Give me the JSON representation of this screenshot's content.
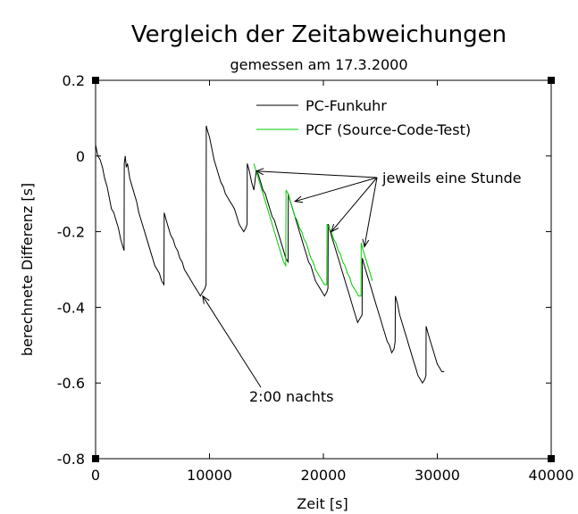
{
  "chart_data": {
    "type": "line",
    "title": "Vergleich der Zeitabweichungen",
    "subtitle": "gemessen am 17.3.2000",
    "xlabel": "Zeit [s]",
    "ylabel": "berechnete Differenz [s]",
    "xlim": [
      0,
      40000
    ],
    "ylim": [
      -0.8,
      0.2
    ],
    "x_ticks": [
      0,
      10000,
      20000,
      30000,
      40000
    ],
    "x_tick_labels": [
      "0",
      "10000",
      "20000",
      "30000",
      "40000"
    ],
    "y_ticks": [
      0.2,
      0,
      -0.2,
      -0.4,
      -0.6,
      -0.8
    ],
    "y_tick_labels": [
      "0.2",
      "0",
      "-0.2",
      "-0.4",
      "-0.6",
      "-0.8"
    ],
    "grid": false,
    "legend_position": "top-right",
    "series": [
      {
        "name": "PC-Funkuhr",
        "color": "#000000",
        "points": [
          [
            0,
            0.03
          ],
          [
            200,
            0.0
          ],
          [
            400,
            -0.01
          ],
          [
            600,
            -0.03
          ],
          [
            800,
            -0.06
          ],
          [
            1000,
            -0.08
          ],
          [
            1200,
            -0.11
          ],
          [
            1400,
            -0.14
          ],
          [
            1600,
            -0.15
          ],
          [
            1800,
            -0.17
          ],
          [
            2000,
            -0.19
          ],
          [
            2200,
            -0.22
          ],
          [
            2400,
            -0.24
          ],
          [
            2500,
            -0.25
          ],
          [
            2520,
            -0.02
          ],
          [
            2600,
            0.0
          ],
          [
            2700,
            -0.03
          ],
          [
            2800,
            -0.02
          ],
          [
            3000,
            -0.06
          ],
          [
            3200,
            -0.08
          ],
          [
            3400,
            -0.1
          ],
          [
            3600,
            -0.12
          ],
          [
            3800,
            -0.15
          ],
          [
            4000,
            -0.17
          ],
          [
            4200,
            -0.19
          ],
          [
            4400,
            -0.21
          ],
          [
            4600,
            -0.23
          ],
          [
            4800,
            -0.25
          ],
          [
            5000,
            -0.27
          ],
          [
            5200,
            -0.29
          ],
          [
            5400,
            -0.3
          ],
          [
            5600,
            -0.31
          ],
          [
            5800,
            -0.33
          ],
          [
            6000,
            -0.34
          ],
          [
            6020,
            -0.15
          ],
          [
            6200,
            -0.17
          ],
          [
            6400,
            -0.19
          ],
          [
            6600,
            -0.21
          ],
          [
            6800,
            -0.22
          ],
          [
            7000,
            -0.24
          ],
          [
            7200,
            -0.25
          ],
          [
            7400,
            -0.27
          ],
          [
            7600,
            -0.28
          ],
          [
            7800,
            -0.3
          ],
          [
            8000,
            -0.31
          ],
          [
            8200,
            -0.32
          ],
          [
            8400,
            -0.33
          ],
          [
            8600,
            -0.34
          ],
          [
            8800,
            -0.35
          ],
          [
            9000,
            -0.36
          ],
          [
            9200,
            -0.37
          ],
          [
            9400,
            -0.36
          ],
          [
            9600,
            -0.35
          ],
          [
            9700,
            -0.34
          ],
          [
            9720,
            0.08
          ],
          [
            9800,
            0.07
          ],
          [
            10000,
            0.05
          ],
          [
            10200,
            0.02
          ],
          [
            10400,
            -0.01
          ],
          [
            10600,
            -0.03
          ],
          [
            10800,
            -0.05
          ],
          [
            11000,
            -0.07
          ],
          [
            11200,
            -0.08
          ],
          [
            11400,
            -0.1
          ],
          [
            11600,
            -0.11
          ],
          [
            11800,
            -0.12
          ],
          [
            12000,
            -0.13
          ],
          [
            12200,
            -0.14
          ],
          [
            12400,
            -0.16
          ],
          [
            12600,
            -0.18
          ],
          [
            12800,
            -0.19
          ],
          [
            13000,
            -0.2
          ],
          [
            13200,
            -0.19
          ],
          [
            13300,
            -0.18
          ],
          [
            13320,
            -0.02
          ],
          [
            13500,
            -0.04
          ],
          [
            13700,
            -0.07
          ],
          [
            13900,
            -0.09
          ],
          [
            14100,
            -0.04
          ],
          [
            14300,
            -0.05
          ],
          [
            14500,
            -0.07
          ],
          [
            14700,
            -0.09
          ],
          [
            14900,
            -0.1
          ],
          [
            15100,
            -0.12
          ],
          [
            15300,
            -0.14
          ],
          [
            15500,
            -0.16
          ],
          [
            15700,
            -0.17
          ],
          [
            15900,
            -0.19
          ],
          [
            16100,
            -0.21
          ],
          [
            16300,
            -0.23
          ],
          [
            16500,
            -0.25
          ],
          [
            16700,
            -0.27
          ],
          [
            16900,
            -0.28
          ],
          [
            16920,
            -0.1
          ],
          [
            17100,
            -0.12
          ],
          [
            17300,
            -0.14
          ],
          [
            17500,
            -0.16
          ],
          [
            17700,
            -0.18
          ],
          [
            17900,
            -0.2
          ],
          [
            18100,
            -0.22
          ],
          [
            18300,
            -0.24
          ],
          [
            18500,
            -0.26
          ],
          [
            18700,
            -0.28
          ],
          [
            18900,
            -0.29
          ],
          [
            19100,
            -0.31
          ],
          [
            19300,
            -0.33
          ],
          [
            19500,
            -0.34
          ],
          [
            19700,
            -0.35
          ],
          [
            19900,
            -0.36
          ],
          [
            20100,
            -0.37
          ],
          [
            20300,
            -0.36
          ],
          [
            20400,
            -0.35
          ],
          [
            20420,
            -0.18
          ],
          [
            20600,
            -0.2
          ],
          [
            20800,
            -0.22
          ],
          [
            21000,
            -0.24
          ],
          [
            21200,
            -0.26
          ],
          [
            21400,
            -0.28
          ],
          [
            21600,
            -0.3
          ],
          [
            21800,
            -0.32
          ],
          [
            22000,
            -0.34
          ],
          [
            22200,
            -0.36
          ],
          [
            22400,
            -0.38
          ],
          [
            22600,
            -0.4
          ],
          [
            22800,
            -0.42
          ],
          [
            23000,
            -0.44
          ],
          [
            23200,
            -0.43
          ],
          [
            23400,
            -0.42
          ],
          [
            23420,
            -0.27
          ],
          [
            23600,
            -0.29
          ],
          [
            23800,
            -0.31
          ],
          [
            24000,
            -0.33
          ],
          [
            24200,
            -0.35
          ],
          [
            24400,
            -0.37
          ],
          [
            24600,
            -0.39
          ],
          [
            24800,
            -0.41
          ],
          [
            25000,
            -0.43
          ],
          [
            25200,
            -0.45
          ],
          [
            25400,
            -0.47
          ],
          [
            25600,
            -0.49
          ],
          [
            25800,
            -0.5
          ],
          [
            26000,
            -0.52
          ],
          [
            26200,
            -0.51
          ],
          [
            26300,
            -0.49
          ],
          [
            26320,
            -0.37
          ],
          [
            26500,
            -0.39
          ],
          [
            26700,
            -0.42
          ],
          [
            26900,
            -0.44
          ],
          [
            27100,
            -0.46
          ],
          [
            27300,
            -0.48
          ],
          [
            27500,
            -0.5
          ],
          [
            27700,
            -0.52
          ],
          [
            27900,
            -0.54
          ],
          [
            28100,
            -0.56
          ],
          [
            28300,
            -0.58
          ],
          [
            28500,
            -0.59
          ],
          [
            28700,
            -0.6
          ],
          [
            28900,
            -0.59
          ],
          [
            29000,
            -0.58
          ],
          [
            29020,
            -0.45
          ],
          [
            29200,
            -0.47
          ],
          [
            29400,
            -0.49
          ],
          [
            29600,
            -0.51
          ],
          [
            29800,
            -0.53
          ],
          [
            30000,
            -0.55
          ],
          [
            30200,
            -0.56
          ],
          [
            30400,
            -0.57
          ],
          [
            30600,
            -0.57
          ]
        ]
      },
      {
        "name": "PCF (Source-Code-Test)",
        "color": "#00cc00",
        "points": [
          [
            13900,
            -0.02
          ],
          [
            14100,
            -0.04
          ],
          [
            14300,
            -0.06
          ],
          [
            14500,
            -0.08
          ],
          [
            14700,
            -0.1
          ],
          [
            14900,
            -0.12
          ],
          [
            15100,
            -0.14
          ],
          [
            15300,
            -0.16
          ],
          [
            15500,
            -0.18
          ],
          [
            15700,
            -0.2
          ],
          [
            15900,
            -0.22
          ],
          [
            16100,
            -0.24
          ],
          [
            16300,
            -0.26
          ],
          [
            16500,
            -0.28
          ],
          [
            16700,
            -0.29
          ],
          [
            16720,
            -0.09
          ],
          [
            16900,
            -0.1
          ],
          [
            17100,
            -0.12
          ],
          [
            17300,
            -0.14
          ],
          [
            17500,
            -0.16
          ],
          [
            17700,
            -0.17
          ],
          [
            17900,
            -0.19
          ],
          [
            18100,
            -0.2
          ],
          [
            18300,
            -0.22
          ],
          [
            18500,
            -0.23
          ],
          [
            18700,
            -0.25
          ],
          [
            18900,
            -0.27
          ],
          [
            19100,
            -0.28
          ],
          [
            19300,
            -0.3
          ],
          [
            19500,
            -0.31
          ],
          [
            19700,
            -0.32
          ],
          [
            19900,
            -0.33
          ],
          [
            20100,
            -0.34
          ],
          [
            20300,
            -0.34
          ],
          [
            20320,
            -0.18
          ],
          [
            20500,
            -0.19
          ],
          [
            20700,
            -0.2
          ],
          [
            20900,
            -0.22
          ],
          [
            21100,
            -0.23
          ],
          [
            21300,
            -0.25
          ],
          [
            21500,
            -0.26
          ],
          [
            21700,
            -0.28
          ],
          [
            21900,
            -0.29
          ],
          [
            22100,
            -0.31
          ],
          [
            22300,
            -0.32
          ],
          [
            22500,
            -0.34
          ],
          [
            22700,
            -0.35
          ],
          [
            22900,
            -0.36
          ],
          [
            23100,
            -0.37
          ],
          [
            23300,
            -0.37
          ],
          [
            23320,
            -0.23
          ],
          [
            23500,
            -0.25
          ],
          [
            23700,
            -0.27
          ],
          [
            23900,
            -0.29
          ],
          [
            24100,
            -0.31
          ],
          [
            24300,
            -0.33
          ]
        ]
      }
    ],
    "annotations": [
      {
        "text": "jeweils eine Stunde",
        "target_points": [
          [
            14100,
            -0.04
          ],
          [
            17500,
            -0.12
          ],
          [
            20700,
            -0.2
          ],
          [
            23600,
            -0.24
          ]
        ]
      },
      {
        "text": "2:00 nachts",
        "target_points": [
          [
            9400,
            -0.37
          ]
        ]
      }
    ]
  }
}
